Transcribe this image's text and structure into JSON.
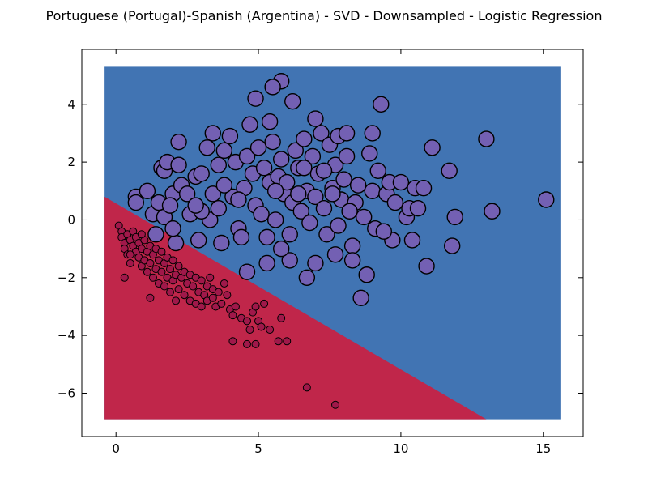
{
  "chart_data": {
    "type": "scatter",
    "title": "Portuguese (Portugal)-Spanish (Argentina) - SVD - Downsampled - Logistic Regression",
    "xlabel": "",
    "ylabel": "",
    "xlim": [
      -1.2,
      16.4
    ],
    "ylim": [
      -7.5,
      5.9
    ],
    "xticks": [
      0,
      5,
      10,
      15
    ],
    "yticks": [
      -6,
      -4,
      -2,
      0,
      2,
      4
    ],
    "grid": false,
    "legend": "none",
    "colors": {
      "region_upper": "#4174b3",
      "region_lower": "#c0264a",
      "series_upper_fill": "#7360b3",
      "series_lower_fill": "#a0184a",
      "marker_edge": "#000000"
    },
    "decision_region": {
      "x_range": [
        -0.4,
        15.6
      ],
      "y_range": [
        -6.9,
        5.3
      ],
      "boundary": [
        [
          -0.4,
          0.8
        ],
        [
          13.0,
          -6.9
        ]
      ]
    },
    "series": [
      {
        "marker_size": "large",
        "points": [
          [
            0.7,
            0.8
          ],
          [
            0.7,
            0.6
          ],
          [
            1.1,
            1.0
          ],
          [
            1.3,
            0.2
          ],
          [
            1.5,
            0.6
          ],
          [
            1.6,
            1.8
          ],
          [
            1.7,
            0.1
          ],
          [
            1.7,
            1.7
          ],
          [
            1.8,
            2.0
          ],
          [
            2.0,
            0.9
          ],
          [
            2.2,
            1.9
          ],
          [
            2.3,
            1.2
          ],
          [
            2.5,
            0.9
          ],
          [
            2.6,
            0.2
          ],
          [
            2.8,
            1.5
          ],
          [
            3.0,
            1.6
          ],
          [
            3.2,
            2.5
          ],
          [
            3.3,
            0.0
          ],
          [
            3.4,
            0.9
          ],
          [
            3.6,
            1.9
          ],
          [
            3.8,
            2.4
          ],
          [
            4.0,
            2.9
          ],
          [
            4.1,
            0.8
          ],
          [
            4.2,
            2.0
          ],
          [
            4.3,
            -0.3
          ],
          [
            4.5,
            1.1
          ],
          [
            4.6,
            2.2
          ],
          [
            4.7,
            3.3
          ],
          [
            4.8,
            1.6
          ],
          [
            4.9,
            0.5
          ],
          [
            5.0,
            2.5
          ],
          [
            5.1,
            0.2
          ],
          [
            5.2,
            1.8
          ],
          [
            5.3,
            -0.6
          ],
          [
            5.4,
            1.3
          ],
          [
            5.5,
            2.7
          ],
          [
            5.6,
            0.0
          ],
          [
            5.7,
            1.5
          ],
          [
            5.8,
            2.1
          ],
          [
            5.9,
            0.9
          ],
          [
            6.0,
            1.3
          ],
          [
            6.1,
            -0.5
          ],
          [
            6.2,
            0.6
          ],
          [
            6.3,
            2.4
          ],
          [
            6.4,
            1.8
          ],
          [
            6.5,
            0.3
          ],
          [
            6.6,
            2.8
          ],
          [
            6.7,
            1.0
          ],
          [
            6.8,
            -0.1
          ],
          [
            6.9,
            2.2
          ],
          [
            7.0,
            0.8
          ],
          [
            7.1,
            1.6
          ],
          [
            7.2,
            3.0
          ],
          [
            7.3,
            0.4
          ],
          [
            7.4,
            -0.5
          ],
          [
            7.5,
            2.6
          ],
          [
            7.6,
            1.1
          ],
          [
            7.7,
            1.9
          ],
          [
            7.8,
            -0.2
          ],
          [
            7.9,
            0.7
          ],
          [
            8.0,
            1.4
          ],
          [
            8.1,
            2.2
          ],
          [
            8.3,
            -0.9
          ],
          [
            8.4,
            0.6
          ],
          [
            8.5,
            1.2
          ],
          [
            8.7,
            0.1
          ],
          [
            8.9,
            2.3
          ],
          [
            9.0,
            1.0
          ],
          [
            9.1,
            -0.3
          ],
          [
            9.2,
            1.7
          ],
          [
            9.5,
            0.9
          ],
          [
            9.6,
            1.3
          ],
          [
            9.7,
            -0.7
          ],
          [
            10.0,
            1.3
          ],
          [
            10.2,
            0.1
          ],
          [
            10.3,
            0.4
          ],
          [
            10.5,
            1.1
          ],
          [
            10.8,
            1.1
          ],
          [
            10.9,
            -1.6
          ],
          [
            11.1,
            2.5
          ],
          [
            11.7,
            1.7
          ],
          [
            11.8,
            -0.9
          ],
          [
            11.9,
            0.1
          ],
          [
            13.2,
            0.3
          ],
          [
            15.1,
            0.7
          ],
          [
            13.0,
            2.8
          ],
          [
            5.8,
            4.8
          ],
          [
            5.5,
            4.6
          ],
          [
            5.4,
            3.4
          ],
          [
            6.2,
            4.1
          ],
          [
            4.9,
            4.2
          ],
          [
            3.4,
            3.0
          ],
          [
            2.2,
            2.7
          ],
          [
            7.0,
            3.5
          ],
          [
            9.3,
            4.0
          ],
          [
            9.0,
            3.0
          ],
          [
            7.8,
            2.9
          ],
          [
            8.1,
            3.0
          ],
          [
            7.3,
            1.7
          ],
          [
            6.6,
            1.8
          ],
          [
            4.6,
            -1.8
          ],
          [
            6.1,
            -1.4
          ],
          [
            5.3,
            -1.5
          ],
          [
            7.0,
            -1.5
          ],
          [
            8.3,
            -1.4
          ],
          [
            8.8,
            -1.9
          ],
          [
            6.7,
            -2.0
          ],
          [
            8.6,
            -2.7
          ],
          [
            7.7,
            -1.2
          ],
          [
            5.8,
            -1.0
          ],
          [
            4.4,
            -0.6
          ],
          [
            3.7,
            -0.8
          ],
          [
            2.9,
            -0.7
          ],
          [
            2.1,
            -0.8
          ],
          [
            1.4,
            -0.5
          ],
          [
            2.0,
            -0.3
          ],
          [
            3.0,
            0.3
          ],
          [
            3.6,
            0.4
          ],
          [
            4.3,
            0.7
          ],
          [
            1.9,
            0.5
          ],
          [
            2.8,
            0.5
          ],
          [
            3.8,
            1.2
          ],
          [
            5.6,
            1.0
          ],
          [
            6.4,
            0.9
          ],
          [
            8.2,
            0.3
          ],
          [
            7.6,
            0.9
          ],
          [
            9.8,
            0.6
          ],
          [
            10.6,
            0.4
          ],
          [
            10.4,
            -0.7
          ],
          [
            9.4,
            -0.4
          ]
        ]
      },
      {
        "marker_size": "small",
        "points": [
          [
            0.1,
            -0.2
          ],
          [
            0.2,
            -0.4
          ],
          [
            0.2,
            -0.6
          ],
          [
            0.3,
            -0.8
          ],
          [
            0.3,
            -1.0
          ],
          [
            0.4,
            -0.5
          ],
          [
            0.4,
            -1.2
          ],
          [
            0.5,
            -0.7
          ],
          [
            0.5,
            -1.5
          ],
          [
            0.6,
            -0.9
          ],
          [
            0.6,
            -0.4
          ],
          [
            0.7,
            -1.1
          ],
          [
            0.7,
            -0.6
          ],
          [
            0.8,
            -1.3
          ],
          [
            0.8,
            -0.8
          ],
          [
            0.9,
            -1.0
          ],
          [
            0.9,
            -1.6
          ],
          [
            1.0,
            -0.7
          ],
          [
            1.0,
            -1.4
          ],
          [
            1.1,
            -1.1
          ],
          [
            1.1,
            -1.8
          ],
          [
            1.2,
            -0.9
          ],
          [
            1.2,
            -1.5
          ],
          [
            1.3,
            -1.2
          ],
          [
            1.3,
            -2.0
          ],
          [
            1.4,
            -1.0
          ],
          [
            1.4,
            -1.7
          ],
          [
            1.5,
            -1.4
          ],
          [
            1.5,
            -2.2
          ],
          [
            1.6,
            -1.1
          ],
          [
            1.6,
            -1.8
          ],
          [
            1.7,
            -1.5
          ],
          [
            1.7,
            -2.3
          ],
          [
            1.8,
            -1.3
          ],
          [
            1.8,
            -2.0
          ],
          [
            1.9,
            -1.7
          ],
          [
            1.9,
            -2.5
          ],
          [
            2.0,
            -1.4
          ],
          [
            2.0,
            -2.1
          ],
          [
            2.1,
            -1.9
          ],
          [
            2.2,
            -1.6
          ],
          [
            2.2,
            -2.4
          ],
          [
            2.3,
            -2.0
          ],
          [
            2.4,
            -1.8
          ],
          [
            2.4,
            -2.6
          ],
          [
            2.5,
            -2.2
          ],
          [
            2.6,
            -1.9
          ],
          [
            2.6,
            -2.8
          ],
          [
            2.7,
            -2.3
          ],
          [
            2.8,
            -2.0
          ],
          [
            2.8,
            -2.9
          ],
          [
            2.9,
            -2.5
          ],
          [
            3.0,
            -2.1
          ],
          [
            3.0,
            -3.0
          ],
          [
            3.1,
            -2.6
          ],
          [
            3.2,
            -2.3
          ],
          [
            3.2,
            -2.8
          ],
          [
            3.3,
            -2.0
          ],
          [
            3.4,
            -2.7
          ],
          [
            3.4,
            -2.4
          ],
          [
            3.5,
            -3.0
          ],
          [
            3.6,
            -2.5
          ],
          [
            3.7,
            -2.9
          ],
          [
            3.8,
            -2.2
          ],
          [
            3.9,
            -2.6
          ],
          [
            4.0,
            -3.1
          ],
          [
            0.3,
            -2.0
          ],
          [
            1.2,
            -2.7
          ],
          [
            2.1,
            -2.8
          ],
          [
            0.5,
            -1.2
          ],
          [
            4.1,
            -3.3
          ],
          [
            4.2,
            -3.0
          ],
          [
            4.4,
            -3.4
          ],
          [
            4.6,
            -3.5
          ],
          [
            4.7,
            -3.8
          ],
          [
            4.8,
            -3.2
          ],
          [
            4.9,
            -3.0
          ],
          [
            5.0,
            -3.5
          ],
          [
            5.1,
            -3.7
          ],
          [
            5.2,
            -2.9
          ],
          [
            5.4,
            -3.8
          ],
          [
            5.7,
            -4.2
          ],
          [
            5.8,
            -3.4
          ],
          [
            6.0,
            -4.2
          ],
          [
            4.1,
            -4.2
          ],
          [
            4.6,
            -4.3
          ],
          [
            4.9,
            -4.3
          ],
          [
            6.7,
            -5.8
          ],
          [
            7.7,
            -6.4
          ],
          [
            0.9,
            -0.5
          ]
        ]
      }
    ]
  }
}
